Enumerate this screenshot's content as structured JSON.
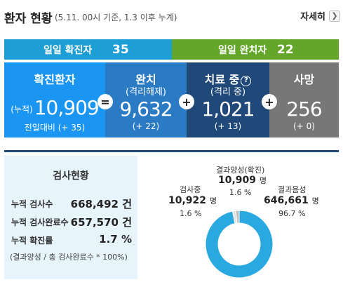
{
  "header": {
    "title": "환자 현황",
    "subtitle": "(5.11. 00시 기준, 1.3 이후 누계)",
    "more_label": "자세히",
    "more_icon": "chevron-right-icon"
  },
  "daily": {
    "confirmed_label": "일일 확진자",
    "confirmed_value": "35",
    "released_label": "일일 완치자",
    "released_value": "22"
  },
  "boxes": {
    "confirmed": {
      "title": "확진환자",
      "prefix": "(누적)",
      "value": "10,909",
      "delta": "전일대비 (+ 35)"
    },
    "released": {
      "title": "완치",
      "subtitle": "(격리해제)",
      "value": "9,632",
      "delta": "(+ 22)"
    },
    "treatment": {
      "title": "치료 중",
      "help_icon": "?",
      "subtitle": "(격리 중)",
      "value": "1,021",
      "delta": "(+ 13)"
    },
    "deaths": {
      "title": "사망",
      "value": "256",
      "delta": "(+ 0)"
    }
  },
  "operators": {
    "eq": "=",
    "plus1": "+",
    "plus2": "+",
    "plus3": "+"
  },
  "tests": {
    "title": "검사현황",
    "rows": [
      {
        "label": "누적 검사수",
        "value": "668,492 건"
      },
      {
        "label": "누적 검사완료수",
        "value": "657,570 건"
      },
      {
        "label": "누적 확진률",
        "value": "1.7 %"
      }
    ],
    "note": "(결과양성 / 총 검사완료수 * 100%)"
  },
  "donut": {
    "positive": {
      "label": "결과양성(확진)",
      "value": "10,909",
      "unit": "명",
      "pct": "1.6 %"
    },
    "testing": {
      "label": "검사중",
      "value": "10,922",
      "unit": "명",
      "pct": "1.6 %"
    },
    "negative": {
      "label": "결과음성",
      "value": "646,661",
      "unit": "명",
      "pct": "96.7 %"
    },
    "fractions": {
      "negative": 0.967,
      "positive": 0.016,
      "testing": 0.016
    }
  },
  "colors": {
    "daily_confirmed": "#1d9fd6",
    "daily_released": "#63a62a",
    "box_confirmed": "#1a95f2",
    "box_released": "#2a7ac4",
    "box_treatment": "#20497a",
    "box_deaths": "#777777",
    "donut_negative": "#2aa9e0",
    "donut_positive": "#bdbdbd",
    "donut_testing": "#e2e2e2"
  }
}
